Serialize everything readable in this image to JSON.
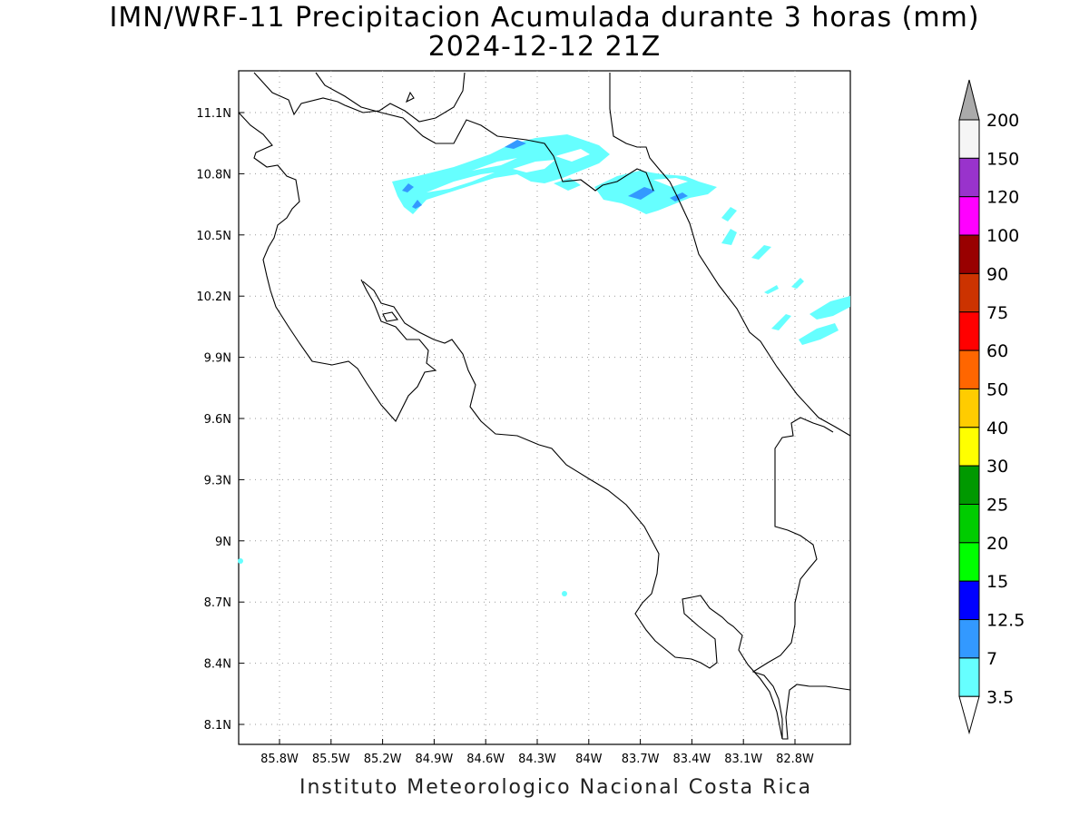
{
  "title": "IMN/WRF-11 Precipitacion Acumulada durante 3 horas (mm)",
  "subtitle": "2024-12-12 21Z",
  "footer": "Instituto Meteorologico Nacional Costa Rica",
  "map": {
    "lon_range": [
      -86.05,
      -82.6
    ],
    "lat_range": [
      8.0,
      11.3
    ],
    "lon_ticks": [
      "85.8W",
      "85.5W",
      "85.2W",
      "84.9W",
      "84.6W",
      "84.3W",
      "84W",
      "83.7W",
      "83.4W",
      "83.1W",
      "82.8W"
    ],
    "lat_ticks": [
      "11.1N",
      "10.8N",
      "10.5N",
      "10.2N",
      "9.9N",
      "9.6N",
      "9.3N",
      "9N",
      "8.7N",
      "8.4N",
      "8.1N"
    ],
    "grid": true,
    "precip_colors": {
      "light": "#66ffff",
      "medium": "#3399ff"
    }
  },
  "legend": {
    "placement": "right",
    "levels": [
      {
        "label": "200",
        "color": "#f5f5f5"
      },
      {
        "label": "150",
        "color": "#9933cc"
      },
      {
        "label": "120",
        "color": "#ff00ff"
      },
      {
        "label": "100",
        "color": "#990000"
      },
      {
        "label": "90",
        "color": "#cc3300"
      },
      {
        "label": "75",
        "color": "#ff0000"
      },
      {
        "label": "60",
        "color": "#ff6600"
      },
      {
        "label": "50",
        "color": "#ffcc00"
      },
      {
        "label": "40",
        "color": "#ffff00"
      },
      {
        "label": "30",
        "color": "#009900"
      },
      {
        "label": "25",
        "color": "#00cc00"
      },
      {
        "label": "20",
        "color": "#00ff00"
      },
      {
        "label": "15",
        "color": "#0000ff"
      },
      {
        "label": "12.5",
        "color": "#3399ff"
      },
      {
        "label": "7",
        "color": "#66ffff"
      },
      {
        "label": "3.5",
        "color": "#ffffff"
      }
    ],
    "top_arrow_color": "#aaaaaa",
    "bottom_arrow_color": "#ffffff"
  }
}
